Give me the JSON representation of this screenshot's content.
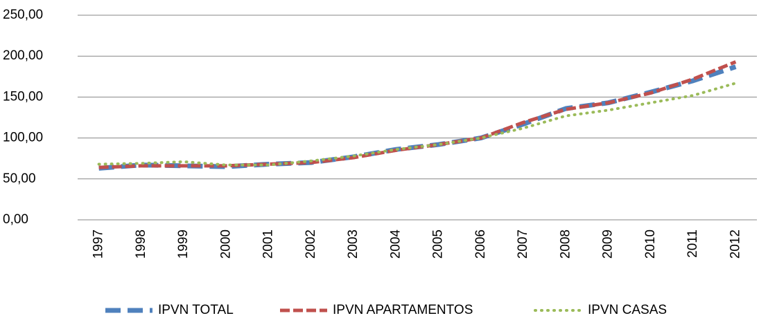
{
  "chart_data": {
    "type": "line",
    "categories": [
      "1997",
      "1998",
      "1999",
      "2000",
      "2001",
      "2002",
      "2003",
      "2004",
      "2005",
      "2006",
      "2007",
      "2008",
      "2009",
      "2010",
      "2011",
      "2012"
    ],
    "series": [
      {
        "name": "IPVN TOTAL",
        "color": "#4f81bd",
        "values": [
          63,
          67,
          66,
          65,
          68,
          70,
          77,
          86,
          92,
          100,
          117,
          136,
          143,
          156,
          170,
          187
        ]
      },
      {
        "name": "IPVN APARTAMENTOS",
        "color": "#c0504d",
        "values": [
          64,
          66,
          66,
          66,
          68,
          70,
          76,
          85,
          92,
          100,
          119,
          135,
          143,
          155,
          172,
          193
        ]
      },
      {
        "name": "IPVN CASAS",
        "color": "#9bbb59",
        "values": [
          68,
          69,
          71,
          67,
          67,
          72,
          78,
          86,
          92,
          100,
          112,
          127,
          134,
          143,
          152,
          167
        ]
      }
    ],
    "ylim": [
      0,
      250
    ],
    "yticks": [
      {
        "value": 0,
        "label": "0,00"
      },
      {
        "value": 50,
        "label": "50,00"
      },
      {
        "value": 100,
        "label": "100,00"
      },
      {
        "value": 150,
        "label": "150,00"
      },
      {
        "value": 200,
        "label": "200,00"
      },
      {
        "value": 250,
        "label": "250,00"
      }
    ],
    "grid": true,
    "legend": "bottom"
  }
}
